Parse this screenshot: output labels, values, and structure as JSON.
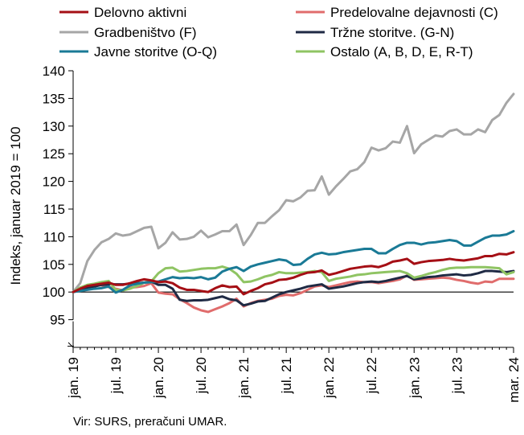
{
  "chart_data": {
    "type": "line",
    "ylabel": "Indeks, januar 2019 = 100",
    "ylim": [
      95,
      140
    ],
    "yticks": [
      95,
      100,
      105,
      110,
      115,
      120,
      125,
      130,
      135,
      140
    ],
    "baseline": 100,
    "x_tick_labels": [
      "jan. 19",
      "jul. 19",
      "jan. 20",
      "jul. 20",
      "jan. 21",
      "jul. 21",
      "jan. 22",
      "jul. 22",
      "jan. 23",
      "jul. 23",
      "mar. 24"
    ],
    "x_tick_months": [
      "2019-01",
      "2019-07",
      "2020-01",
      "2020-07",
      "2021-01",
      "2021-07",
      "2022-01",
      "2022-07",
      "2023-01",
      "2023-07",
      "2024-03"
    ],
    "x": [
      "2019-01",
      "2019-02",
      "2019-03",
      "2019-04",
      "2019-05",
      "2019-06",
      "2019-07",
      "2019-08",
      "2019-09",
      "2019-10",
      "2019-11",
      "2019-12",
      "2020-01",
      "2020-02",
      "2020-03",
      "2020-04",
      "2020-05",
      "2020-06",
      "2020-07",
      "2020-08",
      "2020-09",
      "2020-10",
      "2020-11",
      "2020-12",
      "2021-01",
      "2021-02",
      "2021-03",
      "2021-04",
      "2021-05",
      "2021-06",
      "2021-07",
      "2021-08",
      "2021-09",
      "2021-10",
      "2021-11",
      "2021-12",
      "2022-01",
      "2022-02",
      "2022-03",
      "2022-04",
      "2022-05",
      "2022-06",
      "2022-07",
      "2022-08",
      "2022-09",
      "2022-10",
      "2022-11",
      "2022-12",
      "2023-01",
      "2023-02",
      "2023-03",
      "2023-04",
      "2023-05",
      "2023-06",
      "2023-07",
      "2023-08",
      "2023-09",
      "2023-10",
      "2023-11",
      "2023-12",
      "2024-01",
      "2024-02",
      "2024-03"
    ],
    "series": [
      {
        "name": "Delovno aktivni",
        "color": "#a50f15",
        "values": [
          100.0,
          100.6,
          101.1,
          101.3,
          101.5,
          101.7,
          101.3,
          101.3,
          101.6,
          102.0,
          102.3,
          102.1,
          101.8,
          101.9,
          101.6,
          100.8,
          100.4,
          100.4,
          100.2,
          100.0,
          100.7,
          101.2,
          100.9,
          101.0,
          99.6,
          100.2,
          100.7,
          101.4,
          101.7,
          102.2,
          102.3,
          102.6,
          103.1,
          103.5,
          103.6,
          103.9,
          103.1,
          103.4,
          103.8,
          104.2,
          104.4,
          104.6,
          104.7,
          104.5,
          104.9,
          105.5,
          105.7,
          106.0,
          105.1,
          105.4,
          105.6,
          105.7,
          105.8,
          106.0,
          105.8,
          105.7,
          105.9,
          106.1,
          106.5,
          106.5,
          106.9,
          106.8,
          107.2
        ]
      },
      {
        "name": "Predelovalne dejavnosti (C)",
        "color": "#e06c6c",
        "values": [
          100.0,
          100.6,
          101.0,
          101.3,
          101.2,
          100.9,
          100.6,
          100.3,
          100.8,
          100.9,
          101.1,
          101.6,
          99.9,
          99.7,
          99.6,
          98.7,
          98.0,
          97.2,
          96.7,
          96.4,
          96.9,
          97.4,
          98.0,
          98.8,
          97.4,
          98.0,
          98.4,
          98.6,
          98.8,
          99.3,
          99.5,
          99.4,
          99.8,
          100.4,
          101.0,
          101.2,
          100.9,
          101.2,
          101.5,
          101.8,
          101.9,
          101.8,
          101.8,
          101.6,
          101.8,
          102.0,
          102.3,
          103.0,
          102.2,
          102.3,
          102.4,
          102.5,
          102.6,
          102.5,
          102.2,
          102.0,
          101.7,
          101.5,
          101.9,
          101.8,
          102.4,
          102.4,
          102.4
        ]
      },
      {
        "name": "Gradbeništvo (F)",
        "color": "#a6a6a6",
        "values": [
          100.0,
          101.6,
          105.6,
          107.6,
          109.0,
          109.6,
          110.6,
          110.2,
          110.4,
          111.0,
          111.6,
          111.8,
          107.9,
          108.9,
          110.8,
          109.5,
          109.6,
          110.0,
          111.1,
          109.9,
          110.4,
          111.0,
          111.0,
          112.2,
          108.5,
          110.3,
          112.5,
          112.5,
          113.7,
          114.8,
          116.6,
          116.4,
          117.1,
          118.3,
          118.4,
          120.9,
          117.6,
          119.1,
          120.4,
          121.8,
          122.2,
          123.5,
          126.1,
          125.6,
          126.0,
          127.2,
          127.0,
          130.0,
          125.1,
          126.7,
          127.5,
          128.3,
          128.1,
          129.1,
          129.4,
          128.5,
          128.5,
          129.4,
          128.9,
          131.1,
          132.0,
          134.2,
          135.8
        ]
      },
      {
        "name": "Tržne storitve. (G-N)",
        "color": "#1f2a44",
        "values": [
          100.0,
          100.3,
          100.8,
          101.0,
          101.3,
          101.4,
          101.4,
          101.4,
          101.5,
          101.6,
          101.7,
          101.9,
          101.3,
          101.3,
          100.6,
          98.6,
          98.4,
          98.5,
          98.5,
          98.6,
          98.9,
          99.2,
          98.7,
          98.5,
          97.6,
          97.9,
          98.3,
          98.4,
          99.0,
          99.6,
          100.0,
          100.3,
          100.6,
          101.0,
          101.2,
          101.4,
          100.6,
          100.8,
          101.0,
          101.3,
          101.6,
          101.8,
          101.9,
          101.8,
          102.0,
          102.3,
          102.6,
          102.9,
          102.3,
          102.5,
          102.7,
          102.8,
          103.0,
          103.1,
          103.2,
          103.0,
          103.1,
          103.4,
          103.8,
          103.8,
          103.7,
          103.6,
          103.8
        ]
      },
      {
        "name": "Javne storitve (O-Q)",
        "color": "#1a7a96",
        "values": [
          100.0,
          100.2,
          100.4,
          100.6,
          100.7,
          101.0,
          99.9,
          100.4,
          101.2,
          101.5,
          101.7,
          101.8,
          101.9,
          102.3,
          102.7,
          102.5,
          102.6,
          102.5,
          102.7,
          102.3,
          102.6,
          103.7,
          104.2,
          104.5,
          103.8,
          104.6,
          105.0,
          105.3,
          105.6,
          105.9,
          105.7,
          104.9,
          105.0,
          106.0,
          106.8,
          107.1,
          106.8,
          106.9,
          107.2,
          107.4,
          107.6,
          107.8,
          107.8,
          107.0,
          107.0,
          107.8,
          108.5,
          108.9,
          108.9,
          108.6,
          108.9,
          109.0,
          109.2,
          109.4,
          109.2,
          108.4,
          108.4,
          109.1,
          109.8,
          110.2,
          110.2,
          110.4,
          111.0
        ]
      },
      {
        "name": "Ostalo (A, B, D, E, R-T)",
        "color": "#8fc463",
        "values": [
          100.0,
          100.8,
          101.3,
          101.5,
          101.8,
          102.0,
          100.4,
          100.3,
          100.6,
          101.1,
          101.7,
          101.9,
          103.4,
          104.3,
          104.4,
          103.7,
          103.8,
          104.0,
          104.2,
          104.3,
          104.3,
          104.6,
          104.2,
          103.3,
          101.8,
          101.9,
          102.3,
          102.8,
          103.1,
          103.6,
          103.4,
          103.4,
          103.5,
          103.6,
          103.8,
          103.6,
          102.0,
          102.4,
          102.6,
          102.8,
          103.1,
          103.2,
          103.4,
          103.5,
          103.6,
          103.7,
          103.8,
          103.4,
          102.6,
          102.9,
          103.3,
          103.6,
          104.0,
          104.3,
          104.4,
          104.4,
          104.5,
          104.5,
          104.5,
          104.4,
          104.3,
          103.2,
          103.6
        ]
      }
    ],
    "legend_placement": "top",
    "grid": false
  },
  "source_note": "Vir: SURS, preračuni UMAR."
}
